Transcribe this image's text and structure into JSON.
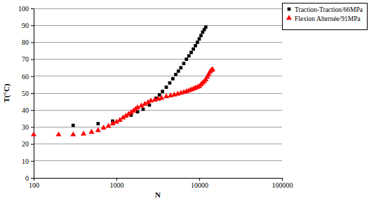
{
  "chart_data": {
    "type": "scatter",
    "x_label": "N",
    "y_label": "T(°C)",
    "log": "x",
    "grid": true,
    "legend": "top-right",
    "xlim": [
      100,
      100000
    ],
    "xticks": [
      100,
      1000,
      10000,
      100000
    ],
    "ylim": [
      0,
      100
    ],
    "yticks": [
      0,
      10,
      20,
      30,
      40,
      50,
      60,
      70,
      80,
      90,
      100
    ],
    "series": [
      {
        "name": "Traction-Traction/66MPa",
        "color": "#000000",
        "marker": "square",
        "x": [
          300,
          600,
          900,
          1500,
          1800,
          2100,
          2500,
          3000,
          3300,
          3600,
          4000,
          4400,
          4800,
          5200,
          5600,
          6000,
          6500,
          7000,
          7500,
          8000,
          8500,
          9000,
          9500,
          10000,
          10500,
          11000,
          11500,
          12000
        ],
        "values": [
          31,
          32,
          33.5,
          37,
          39,
          40.5,
          43,
          47,
          49,
          51,
          53.5,
          56,
          58.5,
          61,
          63,
          65,
          67.5,
          70,
          72,
          74,
          76,
          78,
          80,
          82,
          84,
          86,
          87.5,
          89
        ]
      },
      {
        "name": "Flexion Alternée/91MPa",
        "color": "#ff0000",
        "marker": "triangle",
        "x": [
          100,
          200,
          300,
          400,
          500,
          600,
          700,
          800,
          900,
          1000,
          1100,
          1200,
          1300,
          1400,
          1500,
          1600,
          1700,
          1800,
          2000,
          2200,
          2400,
          2600,
          2900,
          3200,
          3500,
          4000,
          4500,
          5000,
          5500,
          6000,
          6500,
          7000,
          7500,
          8000,
          8500,
          9000,
          9500,
          10000,
          10500,
          11000,
          11500,
          12000,
          12500,
          13000,
          13500,
          14000,
          14500
        ],
        "values": [
          25.5,
          25.5,
          25.5,
          26,
          27,
          28,
          29.5,
          30.5,
          32,
          33,
          34,
          35.5,
          36.5,
          37.5,
          38.5,
          39.5,
          40.5,
          41.5,
          42.5,
          43.5,
          44.5,
          45.5,
          46,
          46.5,
          47,
          48,
          48.5,
          49,
          49.5,
          50,
          50.5,
          51,
          51.5,
          52,
          52.5,
          53,
          53.5,
          54,
          55,
          56,
          57,
          58,
          59.5,
          61,
          62.5,
          63.5,
          64
        ]
      }
    ]
  }
}
